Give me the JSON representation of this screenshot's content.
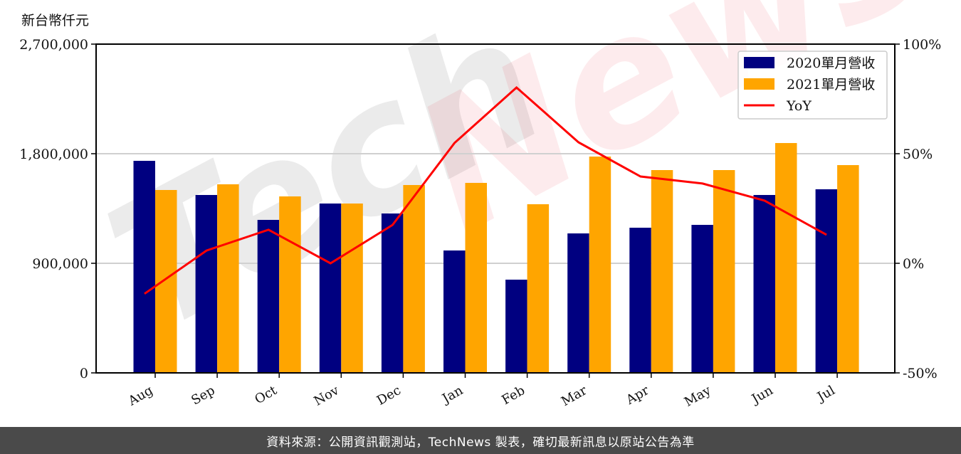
{
  "chart_data": {
    "type": "bar",
    "title": "",
    "ylabel": "新台幣仟元",
    "xlabel": "",
    "categories": [
      "Aug",
      "Sep",
      "Oct",
      "Nov",
      "Dec",
      "Jan",
      "Feb",
      "Mar",
      "Apr",
      "May",
      "Jun",
      "Jul"
    ],
    "series": [
      {
        "name": "2020單月營收",
        "type": "bar",
        "color": "#000080",
        "values": [
          1741500,
          1461000,
          1256500,
          1390900,
          1309000,
          1005200,
          765600,
          1145400,
          1192200,
          1215600,
          1461000,
          1507800
        ]
      },
      {
        "name": "2021單月營收",
        "type": "bar",
        "color": "#FFA500",
        "values": [
          1502000,
          1548700,
          1449300,
          1390900,
          1542800,
          1560300,
          1385000,
          1776600,
          1665600,
          1665600,
          1887600,
          1706400
        ]
      },
      {
        "name": "YoY",
        "type": "line",
        "axis": "right",
        "color": "#FF0000",
        "values": [
          -13.9,
          5.8,
          15.3,
          0.0,
          17.5,
          54.9,
          80.2,
          55.2,
          39.6,
          36.4,
          28.6,
          13.0
        ]
      }
    ],
    "ylim": [
      0,
      2700000
    ],
    "yticks": [
      0,
      900000,
      1800000,
      2700000
    ],
    "ytick_labels": [
      "0",
      "900,000",
      "1,800,000",
      "2,700,000"
    ],
    "y2lim": [
      -50,
      100
    ],
    "y2ticks": [
      -50,
      0,
      50,
      100
    ],
    "y2tick_labels": [
      "-50%",
      "0%",
      "50%",
      "100%"
    ],
    "grid": "horizontal",
    "legend_position": "upper right",
    "watermark": "TechNews"
  },
  "header": {
    "unit_label": "新台幣仟元"
  },
  "footer": {
    "source_text": "資料來源：公開資訊觀測站，TechNews 製表，確切最新訊息以原站公告為準"
  }
}
